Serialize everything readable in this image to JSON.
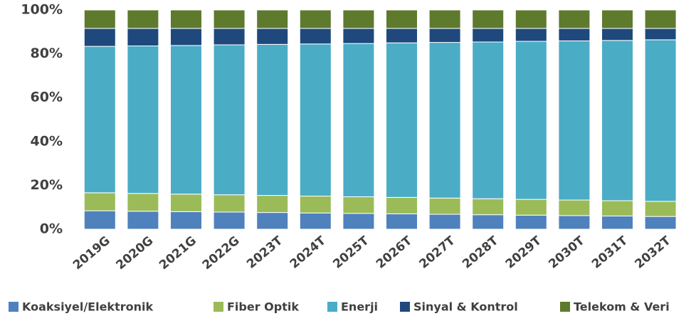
{
  "chart_data": {
    "type": "stacked_bar",
    "categories": [
      "2019G",
      "2020G",
      "2021G",
      "2022G",
      "2023T",
      "2024T",
      "2025T",
      "2026T",
      "2027T",
      "2028T",
      "2029T",
      "2030T",
      "2031T",
      "2032T"
    ],
    "series": [
      {
        "name": "Koaksiyel/Elektronik",
        "color": "#4f81bd",
        "values": [
          8.4,
          8.2,
          8.0,
          7.8,
          7.6,
          7.4,
          7.2,
          7.0,
          6.8,
          6.6,
          6.4,
          6.2,
          6.0,
          5.8
        ]
      },
      {
        "name": "Fiber Optik",
        "color": "#9bbb59",
        "values": [
          8.2,
          8.1,
          8.0,
          7.9,
          7.8,
          7.7,
          7.6,
          7.5,
          7.4,
          7.3,
          7.2,
          7.1,
          7.0,
          6.9
        ]
      },
      {
        "name": "Enerji",
        "color": "#4bacc6",
        "values": [
          66.8,
          67.3,
          67.8,
          68.4,
          68.9,
          69.4,
          69.9,
          70.5,
          71.0,
          71.5,
          72.1,
          72.6,
          73.1,
          73.7
        ]
      },
      {
        "name": "Sinyal & Kontrol",
        "color": "#1f497d",
        "values": [
          8.2,
          8.0,
          7.8,
          7.5,
          7.3,
          7.1,
          6.9,
          6.6,
          6.4,
          6.2,
          5.9,
          5.7,
          5.5,
          5.2
        ]
      },
      {
        "name": "Telekom & Veri",
        "color": "#5e7a2d",
        "values": [
          8.4,
          8.4,
          8.4,
          8.4,
          8.4,
          8.4,
          8.4,
          8.4,
          8.4,
          8.4,
          8.4,
          8.4,
          8.4,
          8.4
        ]
      }
    ],
    "ylim": [
      0,
      100
    ],
    "yticks": [
      {
        "value": 0,
        "label": "0%"
      },
      {
        "value": 20,
        "label": "20%"
      },
      {
        "value": 40,
        "label": "40%"
      },
      {
        "value": 60,
        "label": "60%"
      },
      {
        "value": 80,
        "label": "80%"
      },
      {
        "value": 100,
        "label": "100%"
      }
    ],
    "grid": false,
    "legend": "bottom"
  }
}
